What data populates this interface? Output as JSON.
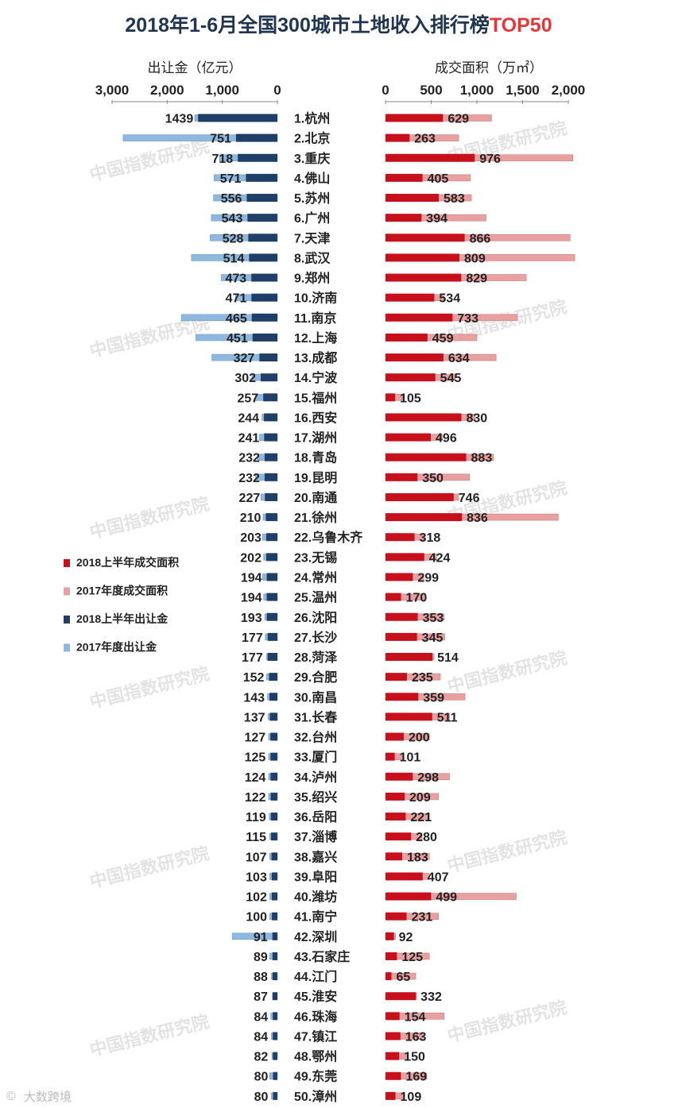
{
  "chart_data": {
    "type": "bar",
    "title_prefix": "2018年1-6月全国300城市土地收入排行榜",
    "title_suffix": "TOP50",
    "title_colors": {
      "prefix": "#1f3550",
      "suffix": "#e0383b"
    },
    "left_axis": {
      "label": "出让金（亿元）",
      "ticks": [
        "3,000",
        "2,000",
        "1,000",
        "0"
      ],
      "range": [
        0,
        3000
      ]
    },
    "right_axis": {
      "label": "成交面积（万㎡）",
      "ticks": [
        "0",
        "500",
        "1,000",
        "1,500",
        "2,000"
      ],
      "range": [
        0,
        2000
      ]
    },
    "legend": [
      {
        "name": "2018上半年成交面积",
        "color": "#c8101c"
      },
      {
        "name": "2017年度成交面积",
        "color": "#e8a0a0"
      },
      {
        "name": "2018上半年出让金",
        "color": "#1f3f66"
      },
      {
        "name": "2017年度出让金",
        "color": "#8eb8de"
      }
    ],
    "watermark": "中国指数研究院",
    "footer": "大数跨境",
    "series_names": [
      "2018上半年出让金",
      "2017年度出让金",
      "2018上半年成交面积",
      "2017年度成交面积"
    ],
    "cities": [
      {
        "label": "1.杭州",
        "rev2018": 1439,
        "rev2017": 1500,
        "area2018": 629,
        "area2017": 1160
      },
      {
        "label": "2.北京",
        "rev2018": 751,
        "rev2017": 2800,
        "area2018": 263,
        "area2017": 800
      },
      {
        "label": "3.重庆",
        "rev2018": 718,
        "rev2017": 1050,
        "area2018": 976,
        "area2017": 2050
      },
      {
        "label": "4.佛山",
        "rev2018": 571,
        "rev2017": 1150,
        "area2018": 405,
        "area2017": 930
      },
      {
        "label": "5.苏州",
        "rev2018": 556,
        "rev2017": 1160,
        "area2018": 583,
        "area2017": 940
      },
      {
        "label": "6.广州",
        "rev2018": 543,
        "rev2017": 1200,
        "area2018": 394,
        "area2017": 1100
      },
      {
        "label": "7.天津",
        "rev2018": 528,
        "rev2017": 1220,
        "area2018": 866,
        "area2017": 2020
      },
      {
        "label": "8.武汉",
        "rev2018": 514,
        "rev2017": 1560,
        "area2018": 809,
        "area2017": 2070
      },
      {
        "label": "9.郑州",
        "rev2018": 473,
        "rev2017": 1020,
        "area2018": 829,
        "area2017": 1540
      },
      {
        "label": "10.济南",
        "rev2018": 471,
        "rev2017": 760,
        "area2018": 534,
        "area2017": 640
      },
      {
        "label": "11.南京",
        "rev2018": 465,
        "rev2017": 1740,
        "area2018": 733,
        "area2017": 1440
      },
      {
        "label": "12.上海",
        "rev2018": 451,
        "rev2017": 1480,
        "area2018": 459,
        "area2017": 1000
      },
      {
        "label": "13.成都",
        "rev2018": 327,
        "rev2017": 1190,
        "area2018": 634,
        "area2017": 1210
      },
      {
        "label": "14.宁波",
        "rev2018": 302,
        "rev2017": 460,
        "area2018": 545,
        "area2017": 760
      },
      {
        "label": "15.福州",
        "rev2018": 257,
        "rev2017": 400,
        "area2018": 105,
        "area2017": 190
      },
      {
        "label": "16.西安",
        "rev2018": 244,
        "rev2017": 280,
        "area2018": 830,
        "area2017": 980
      },
      {
        "label": "17.湖州",
        "rev2018": 241,
        "rev2017": 330,
        "area2018": 496,
        "area2017": 620
      },
      {
        "label": "18.青岛",
        "rev2018": 232,
        "rev2017": 360,
        "area2018": 883,
        "area2017": 1180
      },
      {
        "label": "19.昆明",
        "rev2018": 232,
        "rev2017": 400,
        "area2018": 350,
        "area2017": 920
      },
      {
        "label": "20.南通",
        "rev2018": 227,
        "rev2017": 300,
        "area2018": 746,
        "area2017": 800
      },
      {
        "label": "21.徐州",
        "rev2018": 210,
        "rev2017": 260,
        "area2018": 836,
        "area2017": 1890
      },
      {
        "label": "22.乌鲁木齐",
        "rev2018": 203,
        "rev2017": 270,
        "area2018": 318,
        "area2017": 420
      },
      {
        "label": "23.无锡",
        "rev2018": 202,
        "rev2017": 250,
        "area2018": 424,
        "area2017": 560
      },
      {
        "label": "24.常州",
        "rev2018": 194,
        "rev2017": 270,
        "area2018": 299,
        "area2017": 420
      },
      {
        "label": "25.温州",
        "rev2018": 194,
        "rev2017": 250,
        "area2018": 170,
        "area2017": 420
      },
      {
        "label": "26.沈阳",
        "rev2018": 193,
        "rev2017": 230,
        "area2018": 353,
        "area2017": 640
      },
      {
        "label": "27.长沙",
        "rev2018": 177,
        "rev2017": 220,
        "area2018": 345,
        "area2017": 650
      },
      {
        "label": "28.菏泽",
        "rev2018": 177,
        "rev2017": 200,
        "area2018": 514,
        "area2017": 530
      },
      {
        "label": "29.合肥",
        "rev2018": 152,
        "rev2017": 200,
        "area2018": 235,
        "area2017": 600
      },
      {
        "label": "30.南昌",
        "rev2018": 143,
        "rev2017": 180,
        "area2018": 359,
        "area2017": 870
      },
      {
        "label": "31.长春",
        "rev2018": 137,
        "rev2017": 170,
        "area2018": 511,
        "area2017": 700
      },
      {
        "label": "32.台州",
        "rev2018": 127,
        "rev2017": 160,
        "area2018": 200,
        "area2017": 480
      },
      {
        "label": "33.厦门",
        "rev2018": 125,
        "rev2017": 160,
        "area2018": 101,
        "area2017": 200
      },
      {
        "label": "34.泸州",
        "rev2018": 124,
        "rev2017": 160,
        "area2018": 298,
        "area2017": 700
      },
      {
        "label": "35.绍兴",
        "rev2018": 122,
        "rev2017": 160,
        "area2018": 209,
        "area2017": 580
      },
      {
        "label": "36.岳阳",
        "rev2018": 119,
        "rev2017": 150,
        "area2018": 221,
        "area2017": 480
      },
      {
        "label": "37.淄博",
        "rev2018": 115,
        "rev2017": 140,
        "area2018": 280,
        "area2017": 400
      },
      {
        "label": "38.嘉兴",
        "rev2018": 107,
        "rev2017": 140,
        "area2018": 183,
        "area2017": 480
      },
      {
        "label": "39.阜阳",
        "rev2018": 103,
        "rev2017": 140,
        "area2018": 407,
        "area2017": 480
      },
      {
        "label": "40.潍坊",
        "rev2018": 102,
        "rev2017": 140,
        "area2018": 499,
        "area2017": 1430
      },
      {
        "label": "41.南宁",
        "rev2018": 100,
        "rev2017": 140,
        "area2018": 231,
        "area2017": 580
      },
      {
        "label": "42.深圳",
        "rev2018": 91,
        "rev2017": 820,
        "area2018": 92,
        "area2017": 110
      },
      {
        "label": "43.石家庄",
        "rev2018": 89,
        "rev2017": 140,
        "area2018": 125,
        "area2017": 480
      },
      {
        "label": "44.江门",
        "rev2018": 88,
        "rev2017": 110,
        "area2018": 65,
        "area2017": 330
      },
      {
        "label": "45.淮安",
        "rev2018": 87,
        "rev2017": 90,
        "area2018": 332,
        "area2017": 340
      },
      {
        "label": "46.珠海",
        "rev2018": 84,
        "rev2017": 120,
        "area2018": 154,
        "area2017": 640
      },
      {
        "label": "47.镇江",
        "rev2018": 84,
        "rev2017": 110,
        "area2018": 163,
        "area2017": 410
      },
      {
        "label": "48.鄂州",
        "rev2018": 82,
        "rev2017": 100,
        "area2018": 150,
        "area2017": 230
      },
      {
        "label": "49.东莞",
        "rev2018": 80,
        "rev2017": 140,
        "area2018": 169,
        "area2017": 450
      },
      {
        "label": "50.漳州",
        "rev2018": 80,
        "rev2017": 110,
        "area2018": 109,
        "area2017": 200
      }
    ]
  }
}
